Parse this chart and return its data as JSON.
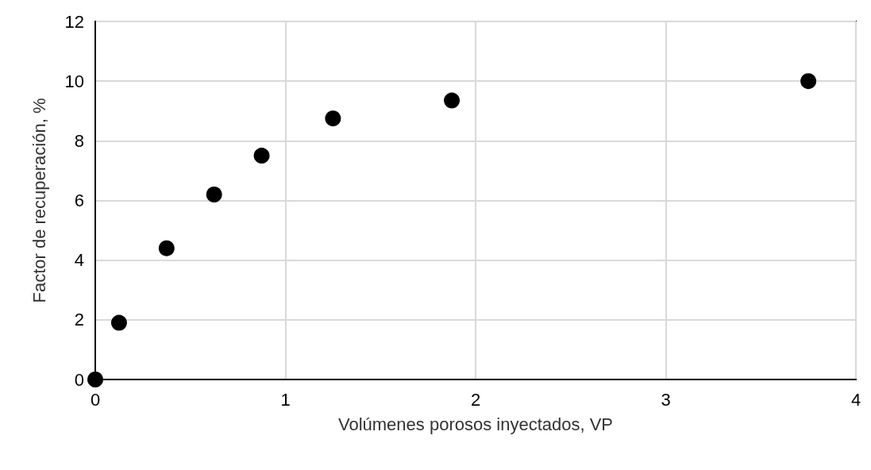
{
  "chart_data": {
    "type": "scatter",
    "xlabel": "Volúmenes porosos inyectados, VP",
    "ylabel": "Factor de recuperación, %",
    "x": [
      0,
      0.125,
      0.375,
      0.625,
      0.875,
      1.25,
      1.875,
      3.75
    ],
    "series": [
      {
        "color": "#000000",
        "values": [
          0,
          1.9,
          4.4,
          6.2,
          7.5,
          8.75,
          9.35,
          10
        ]
      }
    ],
    "xlim": [
      0,
      4
    ],
    "xticks": [
      0,
      1,
      2,
      3,
      4
    ],
    "ylim": [
      0,
      12
    ],
    "yticks": [
      0,
      2,
      4,
      6,
      8,
      10,
      12
    ],
    "grid": true,
    "marker": "circle"
  }
}
